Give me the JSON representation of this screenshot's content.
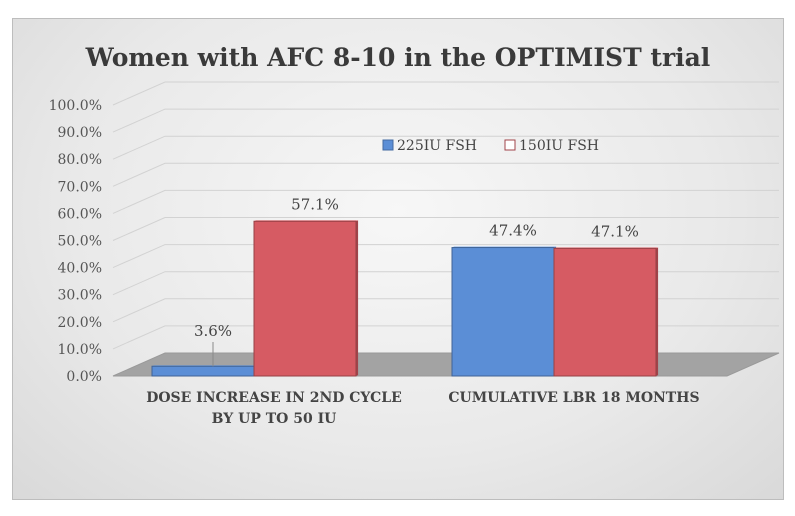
{
  "chart_data": {
    "type": "bar",
    "title": "Women with AFC 8-10 in the OPTIMIST trial",
    "categories": [
      "DOSE INCREASE IN 2ND CYCLE|BY UP TO 50 IU",
      "CUMULATIVE LBR 18 MONTHS"
    ],
    "series": [
      {
        "name": "225IU FSH",
        "values": [
          3.6,
          47.4
        ],
        "labels": [
          "3.6%",
          "47.4%"
        ],
        "color": "#5b8ed6"
      },
      {
        "name": "150IU FSH",
        "values": [
          57.1,
          47.1
        ],
        "labels": [
          "57.1%",
          "47.1%"
        ],
        "color": "#d65b63"
      }
    ],
    "ylim": [
      0,
      100
    ],
    "yticks": [
      "0.0%",
      "10.0%",
      "20.0%",
      "30.0%",
      "40.0%",
      "50.0%",
      "60.0%",
      "70.0%",
      "80.0%",
      "90.0%",
      "100.0%"
    ],
    "legend_position": "top-right",
    "grid": true
  }
}
